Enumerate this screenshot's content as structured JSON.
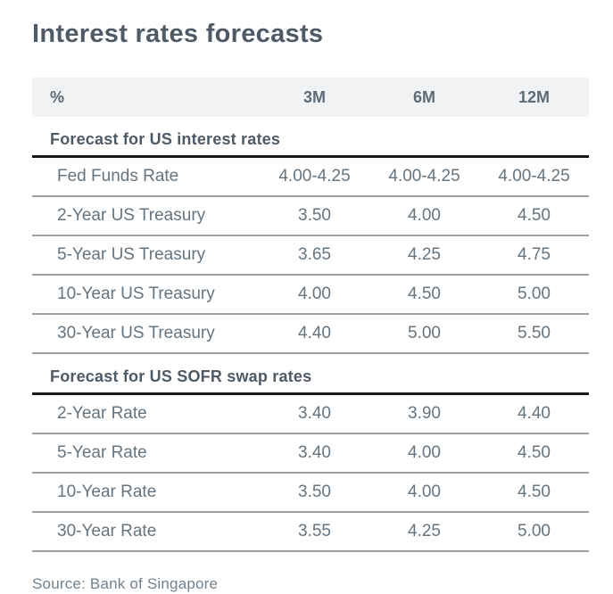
{
  "chart_data": {
    "type": "table",
    "title": "Interest rates forecasts",
    "unit_label": "%",
    "columns": [
      "3M",
      "6M",
      "12M"
    ],
    "sections": [
      {
        "heading": "Forecast for US interest rates",
        "rows": [
          {
            "label": "Fed Funds Rate",
            "values": [
              "4.00-4.25",
              "4.00-4.25",
              "4.00-4.25"
            ]
          },
          {
            "label": "2-Year US Treasury",
            "values": [
              "3.50",
              "4.00",
              "4.50"
            ]
          },
          {
            "label": "5-Year US Treasury",
            "values": [
              "3.65",
              "4.25",
              "4.75"
            ]
          },
          {
            "label": "10-Year US Treasury",
            "values": [
              "4.00",
              "4.50",
              "5.00"
            ]
          },
          {
            "label": "30-Year US Treasury",
            "values": [
              "4.40",
              "5.00",
              "5.50"
            ]
          }
        ]
      },
      {
        "heading": "Forecast for US SOFR swap rates",
        "rows": [
          {
            "label": "2-Year Rate",
            "values": [
              "3.40",
              "3.90",
              "4.40"
            ]
          },
          {
            "label": "5-Year Rate",
            "values": [
              "3.40",
              "4.00",
              "4.50"
            ]
          },
          {
            "label": "10-Year Rate",
            "values": [
              "3.50",
              "4.00",
              "4.50"
            ]
          },
          {
            "label": "30-Year Rate",
            "values": [
              "3.55",
              "4.25",
              "5.00"
            ]
          }
        ]
      }
    ],
    "source": "Source: Bank of Singapore",
    "colors": {
      "title_text": "#4e5a66",
      "body_text": "#65747f",
      "header_background": "#f1f2f3",
      "row_divider": "#9aa0a4",
      "section_divider": "#191919"
    }
  }
}
